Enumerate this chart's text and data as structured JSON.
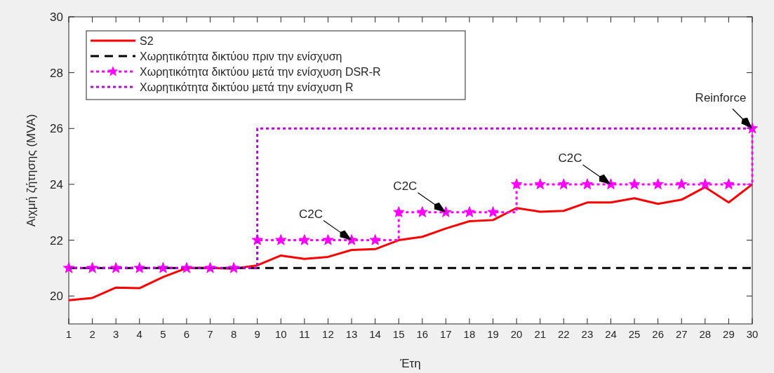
{
  "chart_data": {
    "type": "line",
    "xlabel": "Έτη",
    "ylabel": "Αιχμή ζήτησης (MVA)",
    "x": [
      1,
      2,
      3,
      4,
      5,
      6,
      7,
      8,
      9,
      10,
      11,
      12,
      13,
      14,
      15,
      16,
      17,
      18,
      19,
      20,
      21,
      22,
      23,
      24,
      25,
      26,
      27,
      28,
      29,
      30
    ],
    "xlim": [
      1,
      30
    ],
    "xticks": [
      1,
      2,
      3,
      4,
      5,
      6,
      7,
      8,
      9,
      10,
      11,
      12,
      13,
      14,
      15,
      16,
      17,
      18,
      19,
      20,
      21,
      22,
      23,
      24,
      25,
      26,
      27,
      28,
      29,
      30
    ],
    "ylim": [
      19,
      30
    ],
    "yticks": [
      20,
      22,
      24,
      26,
      28,
      30
    ],
    "grid": false,
    "legend": "top left",
    "series": [
      {
        "name": "S2",
        "type": "line",
        "color": "#ff0000",
        "line_style": "solid",
        "marker": "none",
        "values": [
          19.85,
          19.93,
          20.3,
          20.28,
          20.68,
          21,
          21,
          20.98,
          21.1,
          21.45,
          21.33,
          21.4,
          21.65,
          21.68,
          22,
          22.12,
          22.42,
          22.68,
          22.72,
          23.15,
          23.02,
          23.05,
          23.35,
          23.35,
          23.5,
          23.3,
          23.45,
          23.9,
          23.35,
          24
        ]
      },
      {
        "name": "Χωρητικότητα δικτύου πριν την ενίσχυση",
        "type": "line",
        "color": "#000000",
        "line_style": "dashed",
        "marker": "none",
        "values": [
          21,
          21,
          21,
          21,
          21,
          21,
          21,
          21,
          21,
          21,
          21,
          21,
          21,
          21,
          21,
          21,
          21,
          21,
          21,
          21,
          21,
          21,
          21,
          21,
          21,
          21,
          21,
          21,
          21,
          21
        ]
      },
      {
        "name": "Χωρητικότητα δικτύου μετά την ενίσχυση DSR-R",
        "type": "step",
        "color": "#ff00ff",
        "line_style": "dotted",
        "marker": "star",
        "values": [
          21,
          21,
          21,
          21,
          21,
          21,
          21,
          21,
          22,
          22,
          22,
          22,
          22,
          22,
          23,
          23,
          23,
          23,
          23,
          24,
          24,
          24,
          24,
          24,
          24,
          24,
          24,
          24,
          24,
          26
        ]
      },
      {
        "name": "Χωρητικότητα δικτύου μετά την ενίσχυση R",
        "type": "step",
        "color": "#bb00dd",
        "line_style": "dotted",
        "marker": "none",
        "values": [
          21,
          21,
          21,
          21,
          21,
          21,
          21,
          21,
          26,
          26,
          26,
          26,
          26,
          26,
          26,
          26,
          26,
          26,
          26,
          26,
          26,
          26,
          26,
          26,
          26,
          26,
          26,
          26,
          26,
          26
        ]
      }
    ],
    "annotations": [
      {
        "text": "C2C",
        "x": 13,
        "y": 22
      },
      {
        "text": "C2C",
        "x": 17,
        "y": 23
      },
      {
        "text": "C2C",
        "x": 24,
        "y": 24
      },
      {
        "text": "Reinforce",
        "x": 30,
        "y": 26
      }
    ]
  }
}
